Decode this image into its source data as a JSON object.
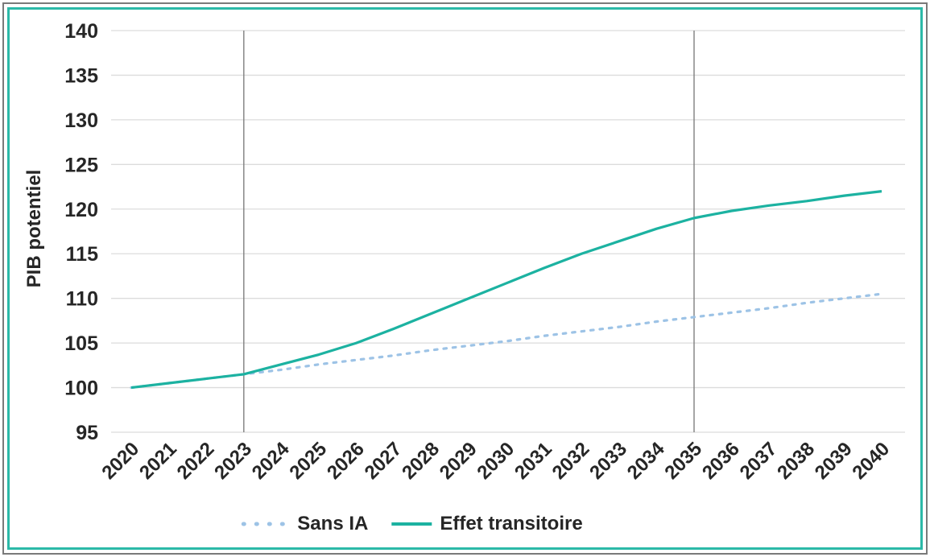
{
  "figure": {
    "outer_border_color": "#7a7a7a",
    "inner_border_color": "#2cb9a8",
    "background": "#ffffff",
    "text_color": "#262626"
  },
  "chart_data": {
    "type": "line",
    "title": "",
    "xlabel": "",
    "ylabel": "PIB potentiel",
    "ylim": [
      95,
      140
    ],
    "ytick_step": 5,
    "grid": {
      "horizontal": true,
      "color": "#dcdcdc"
    },
    "legend_position": "bottom",
    "categories": [
      2020,
      2021,
      2022,
      2023,
      2024,
      2025,
      2026,
      2027,
      2028,
      2029,
      2030,
      2031,
      2032,
      2033,
      2034,
      2035,
      2036,
      2037,
      2038,
      2039,
      2040
    ],
    "series": [
      {
        "name": "Sans IA",
        "style": "dotted",
        "color": "#9dc3e6",
        "values": [
          100,
          100.5,
          101,
          101.5,
          102,
          102.6,
          103.1,
          103.6,
          104.2,
          104.7,
          105.2,
          105.8,
          106.3,
          106.8,
          107.4,
          107.9,
          108.4,
          108.9,
          109.5,
          110,
          110.5
        ]
      },
      {
        "name": "Effet transitoire",
        "style": "solid",
        "color": "#1cb2a1",
        "values": [
          100,
          100.5,
          101,
          101.5,
          102.6,
          103.7,
          105,
          106.6,
          108.3,
          110,
          111.7,
          113.4,
          115,
          116.4,
          117.8,
          119,
          119.8,
          120.4,
          120.9,
          121.5,
          122
        ]
      }
    ],
    "vlines": {
      "years": [
        2023,
        2035
      ],
      "color": "#7f7f7f"
    }
  }
}
